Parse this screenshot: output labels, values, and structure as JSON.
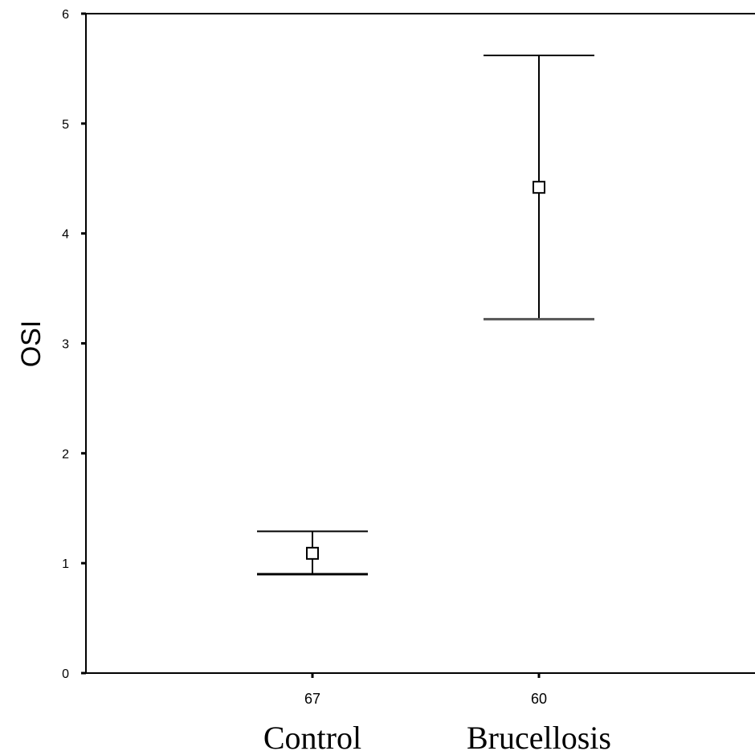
{
  "chart_data": {
    "type": "errorbar",
    "ylabel": "OSI",
    "ylim": [
      0,
      6
    ],
    "yticks": [
      "0",
      "1",
      "2",
      "3",
      "4",
      "5",
      "6"
    ],
    "categories": [
      "Control",
      "Brucellosis"
    ],
    "n_labels": [
      "67",
      "60"
    ],
    "points": [
      {
        "category": "Control",
        "n": "67",
        "mean": 1.09,
        "lower": 0.9,
        "upper": 1.29
      },
      {
        "category": "Brucellosis",
        "n": "60",
        "mean": 4.42,
        "lower": 3.22,
        "upper": 5.62
      }
    ],
    "marker": "open-square",
    "grid": false,
    "colors": {
      "line": "#000000",
      "lower_cap_brucellosis": "#555555"
    }
  }
}
